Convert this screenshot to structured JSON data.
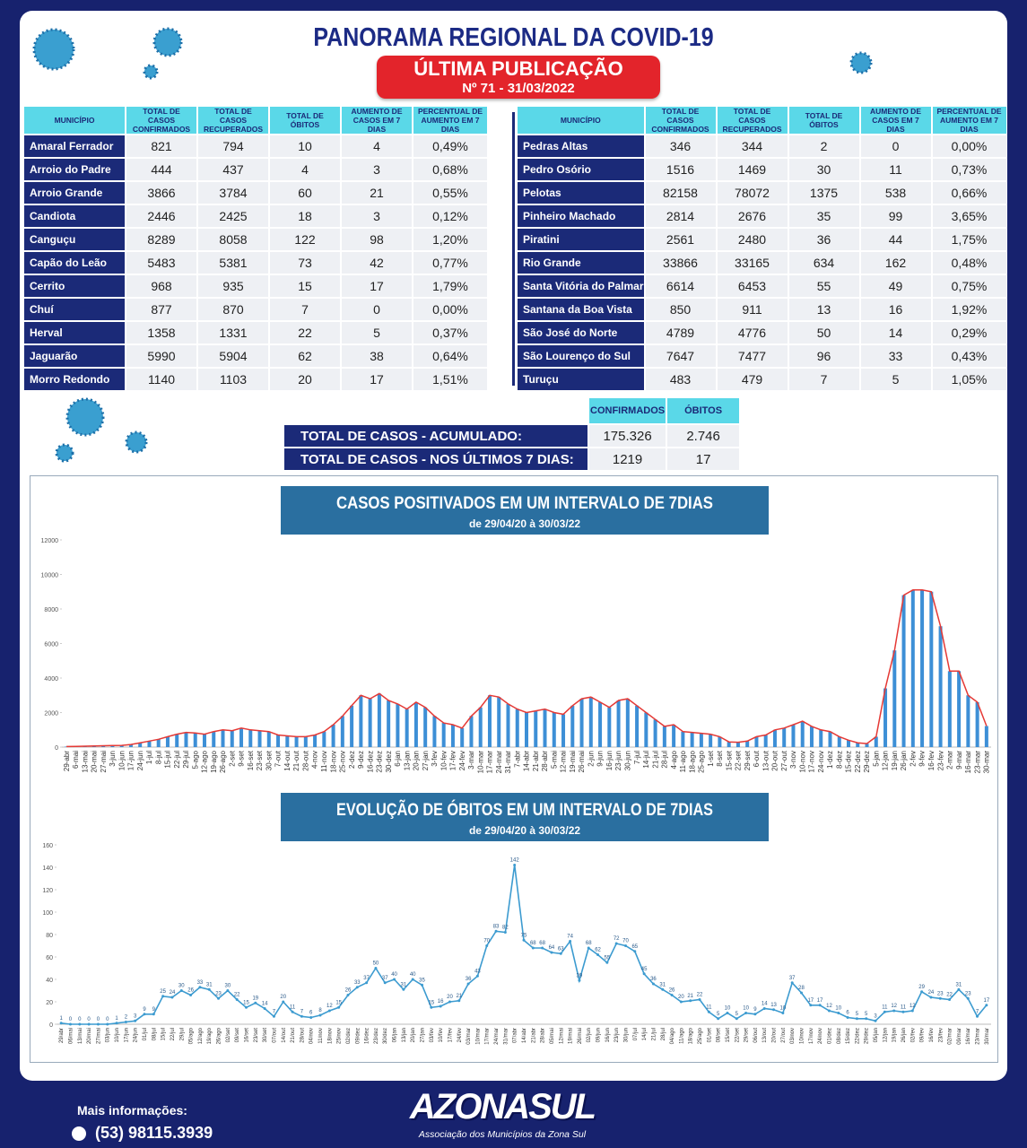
{
  "header": {
    "title": "PANORAMA REGIONAL DA COVID-19",
    "publication": "ÚLTIMA PUBLICAÇÃO",
    "edition": "Nº 71 - 31/03/2022"
  },
  "columns": [
    "MUNICÍPIO",
    "TOTAL DE CASOS CONFIRMADOS",
    "TOTAL DE CASOS RECUPERADOS",
    "TOTAL DE ÓBITOS",
    "AUMENTO DE CASOS EM 7 DIAS",
    "PERCENTUAL DE AUMENTO EM 7 DIAS"
  ],
  "tables": [
    [
      [
        "Amaral Ferrador",
        "821",
        "794",
        "10",
        "4",
        "0,49%"
      ],
      [
        "Arroio do Padre",
        "444",
        "437",
        "4",
        "3",
        "0,68%"
      ],
      [
        "Arroio Grande",
        "3866",
        "3784",
        "60",
        "21",
        "0,55%"
      ],
      [
        "Candiota",
        "2446",
        "2425",
        "18",
        "3",
        "0,12%"
      ],
      [
        "Canguçu",
        "8289",
        "8058",
        "122",
        "98",
        "1,20%"
      ],
      [
        "Capão do Leão",
        "5483",
        "5381",
        "73",
        "42",
        "0,77%"
      ],
      [
        "Cerrito",
        "968",
        "935",
        "15",
        "17",
        "1,79%"
      ],
      [
        "Chuí",
        "877",
        "870",
        "7",
        "0",
        "0,00%"
      ],
      [
        "Herval",
        "1358",
        "1331",
        "22",
        "5",
        "0,37%"
      ],
      [
        "Jaguarão",
        "5990",
        "5904",
        "62",
        "38",
        "0,64%"
      ],
      [
        "Morro Redondo",
        "1140",
        "1103",
        "20",
        "17",
        "1,51%"
      ]
    ],
    [
      [
        "Pedras Altas",
        "346",
        "344",
        "2",
        "0",
        "0,00%"
      ],
      [
        "Pedro Osório",
        "1516",
        "1469",
        "30",
        "11",
        "0,73%"
      ],
      [
        "Pelotas",
        "82158",
        "78072",
        "1375",
        "538",
        "0,66%"
      ],
      [
        "Pinheiro Machado",
        "2814",
        "2676",
        "35",
        "99",
        "3,65%"
      ],
      [
        "Piratini",
        "2561",
        "2480",
        "36",
        "44",
        "1,75%"
      ],
      [
        "Rio Grande",
        "33866",
        "33165",
        "634",
        "162",
        "0,48%"
      ],
      [
        "Santa Vitória do Palmar",
        "6614",
        "6453",
        "55",
        "49",
        "0,75%"
      ],
      [
        "Santana da Boa Vista",
        "850",
        "911",
        "13",
        "16",
        "1,92%"
      ],
      [
        "São José do Norte",
        "4789",
        "4776",
        "50",
        "14",
        "0,29%"
      ],
      [
        "São Lourenço do Sul",
        "7647",
        "7477",
        "96",
        "33",
        "0,43%"
      ],
      [
        "Turuçu",
        "483",
        "479",
        "7",
        "5",
        "1,05%"
      ]
    ]
  ],
  "totals": {
    "columns": [
      "CONFIRMADOS",
      "ÓBITOS"
    ],
    "rows": [
      [
        "TOTAL DE CASOS  - ACUMULADO:",
        "175.326",
        "2.746"
      ],
      [
        "TOTAL DE CASOS  - NOS ÚLTIMOS 7 DIAS:",
        "1219",
        "17"
      ]
    ]
  },
  "chart_data": [
    {
      "type": "bar",
      "title": "CASOS POSITIVADOS EM UM INTERVALO DE 7DIAS",
      "subtitle": "de 29/04/20 à 30/03/22",
      "categories": [
        "29-abr",
        "6-mai",
        "13-mai",
        "20-mai",
        "27-mai",
        "3-jun",
        "10-jun",
        "17-jun",
        "24-jun",
        "1-jul",
        "8-jul",
        "15-jul",
        "22-jul",
        "29-jul",
        "5-ago",
        "12-ago",
        "19-ago",
        "26-ago",
        "2-set",
        "9-set",
        "16-set",
        "23-set",
        "30-set",
        "7-out",
        "14-out",
        "21-out",
        "28-out",
        "4-nov",
        "11-nov",
        "18-nov",
        "25-nov",
        "2-dez",
        "9-dez",
        "16-dez",
        "23-dez",
        "30-dez",
        "6-jan",
        "13-jan",
        "20-jan",
        "27-jan",
        "3-fev",
        "10-fev",
        "17-fev",
        "24-fev",
        "3-mar",
        "10-mar",
        "17-mar",
        "24-mar",
        "31-mar",
        "7-abr",
        "14-abr",
        "21-abr",
        "28-abr",
        "5-mai",
        "12-mai",
        "19-mai",
        "26-mai",
        "2-jun",
        "9-jun",
        "16-jun",
        "23-jun",
        "30-jun",
        "7-jul",
        "14-jul",
        "21-jul",
        "28-jul",
        "4-ago",
        "11-ago",
        "18-ago",
        "25-ago",
        "1-set",
        "8-set",
        "15-set",
        "22-set",
        "29-set",
        "6-out",
        "13-out",
        "20-out",
        "27-out",
        "3-nov",
        "10-nov",
        "17-nov",
        "24-nov",
        "1-dez",
        "8-dez",
        "15-dez",
        "22-dez",
        "29-dez",
        "5-jan",
        "12-jan",
        "19-jan",
        "26-jan",
        "2-fev",
        "9-fev",
        "16-fev",
        "23-fev",
        "2-mar",
        "9-mar",
        "16-mar",
        "23-mar",
        "30-mar"
      ],
      "values": [
        30,
        40,
        50,
        60,
        80,
        90,
        100,
        150,
        250,
        350,
        450,
        600,
        750,
        850,
        820,
        750,
        900,
        1000,
        950,
        1100,
        1000,
        950,
        900,
        700,
        650,
        600,
        600,
        700,
        900,
        1300,
        1800,
        2400,
        3000,
        2800,
        3100,
        2700,
        2500,
        2200,
        2600,
        2300,
        1800,
        1400,
        1300,
        1100,
        1800,
        2300,
        3000,
        2900,
        2500,
        2200,
        2000,
        2100,
        2200,
        2000,
        1900,
        2400,
        2800,
        2900,
        2600,
        2300,
        2700,
        2800,
        2400,
        2000,
        1600,
        1200,
        1300,
        900,
        850,
        800,
        750,
        600,
        300,
        280,
        350,
        600,
        700,
        1000,
        1100,
        1300,
        1500,
        1200,
        1000,
        900,
        600,
        400,
        250,
        200,
        600,
        3400,
        5600,
        8800,
        9100,
        9100,
        9000,
        7000,
        4400,
        4400,
        3000,
        2600,
        1219
      ],
      "color": "#3d8fd6",
      "line_color": "#e53935",
      "ylim": [
        0,
        12000
      ],
      "yticks": [
        0,
        2000,
        4000,
        6000,
        8000,
        10000,
        12000
      ]
    },
    {
      "type": "line",
      "title": "EVOLUÇÃO DE ÓBITOS EM UM INTERVALO DE 7DIAS",
      "subtitle": "de 29/04/20 à 30/03/22",
      "categories": [
        "29/abr",
        "06/mai",
        "13/mai",
        "20/mai",
        "27/mai",
        "03/jun",
        "10/jun",
        "17/jun",
        "24/jun",
        "01/jul",
        "08/jul",
        "15/jul",
        "22/jul",
        "29/jul",
        "05/ago",
        "12/ago",
        "19/ago",
        "26/ago",
        "02/set",
        "09/set",
        "16/set",
        "23/set",
        "30/set",
        "07/out",
        "14/out",
        "21/out",
        "28/out",
        "04/nov",
        "11/nov",
        "18/nov",
        "25/nov",
        "02/dez",
        "09/dez",
        "16/dez",
        "23/dez",
        "30/dez",
        "06/jan",
        "13/jan",
        "20/jan",
        "27/jan",
        "03/fev",
        "10/fev",
        "17/fev",
        "24/fev",
        "03/mar",
        "10/mar",
        "17/mar",
        "24/mar",
        "31/mar",
        "07/abr",
        "14/abr",
        "21/abr",
        "28/abr",
        "05/mai",
        "12/mai",
        "19/mai",
        "26/mai",
        "02/jun",
        "09/jun",
        "16/jun",
        "23/jun",
        "30/jun",
        "07/jul",
        "14/jul",
        "21/jul",
        "28/jul",
        "04/ago",
        "11/ago",
        "18/ago",
        "25/ago",
        "01/set",
        "08/set",
        "15/set",
        "22/set",
        "29/set",
        "06/out",
        "13/out",
        "20/out",
        "27/out",
        "03/nov",
        "10/nov",
        "17/nov",
        "24/nov",
        "01/dez",
        "08/dez",
        "15/dez",
        "22/dez",
        "29/dez",
        "05/jan",
        "12/jan",
        "19/jan",
        "26/jan",
        "02/fev",
        "09/fev",
        "16/fev",
        "23/fev",
        "02/mar",
        "09/mar",
        "16/mar",
        "23/mar",
        "30/mar"
      ],
      "values": [
        1,
        0,
        0,
        0,
        0,
        0,
        1,
        2,
        3,
        9,
        9,
        25,
        24,
        30,
        26,
        33,
        31,
        23,
        30,
        22,
        15,
        19,
        14,
        7,
        20,
        11,
        7,
        6,
        8,
        12,
        15,
        26,
        33,
        37,
        50,
        37,
        40,
        31,
        40,
        35,
        15,
        16,
        20,
        21,
        36,
        43,
        70,
        83,
        82,
        142,
        75,
        68,
        68,
        64,
        63,
        74,
        39,
        68,
        62,
        55,
        72,
        70,
        65,
        45,
        36,
        31,
        26,
        20,
        21,
        22,
        11,
        5,
        10,
        5,
        10,
        9,
        14,
        13,
        10,
        37,
        28,
        17,
        17,
        12,
        10,
        6,
        5,
        5,
        3,
        11,
        12,
        11,
        12,
        29,
        24,
        23,
        22,
        31,
        23,
        7,
        17
      ],
      "color": "#3c9bd0",
      "data_labels": true,
      "ylim": [
        0,
        160
      ],
      "yticks": [
        0,
        20,
        40,
        60,
        80,
        100,
        120,
        140,
        160
      ]
    }
  ],
  "footer": {
    "info_label": "Mais informações:",
    "phone": "(53) 98115.3939",
    "logo": "AZONASUL",
    "logo_subtitle": "Associação dos Municípios da Zona Sul"
  }
}
